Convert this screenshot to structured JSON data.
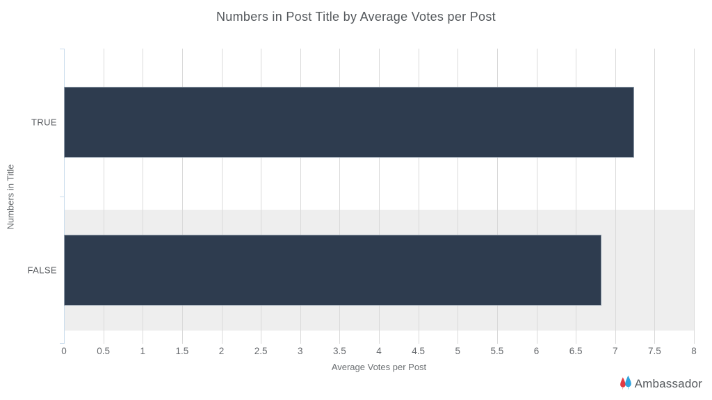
{
  "title": "Numbers in Post Title by Average Votes per Post",
  "chart_data": {
    "type": "bar",
    "orientation": "horizontal",
    "title": "Numbers in Post Title by Average Votes per Post",
    "categories": [
      "TRUE",
      "FALSE"
    ],
    "values": [
      7.24,
      6.83
    ],
    "xlabel": "Average Votes per Post",
    "ylabel": "Numbers in Title",
    "xlim": [
      0,
      8
    ],
    "xtick_step": 0.5,
    "xtick_labels": [
      "0",
      "0.5",
      "1",
      "1.5",
      "2",
      "2.5",
      "3",
      "3.5",
      "4",
      "4.5",
      "5",
      "5.5",
      "6",
      "6.5",
      "7",
      "7.5",
      "8"
    ],
    "grid": true,
    "legend": "none",
    "banded_row_indices": [
      1
    ],
    "colors": {
      "bar": "#2e3c4f",
      "bar_border": "#909dab",
      "row_band": "#eeeeee",
      "gridline": "#d9d9d9",
      "axis_line": "#c9dcec"
    }
  },
  "branding": {
    "logo_text": "Ambassador",
    "logo_icon": "ambassador-flames-icon",
    "logo_red": "#e13a42",
    "logo_blue": "#2fa3dd"
  }
}
